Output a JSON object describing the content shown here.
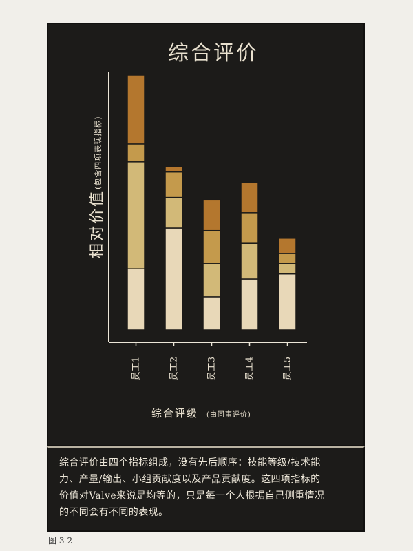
{
  "chart_data": {
    "type": "bar",
    "stacked": true,
    "title": "综合评价",
    "ylabel": "相对价值",
    "ylabel_note": "(包含四项表现指标)",
    "xlabel": "综合评级",
    "xlabel_note": "(由同事评价)",
    "categories": [
      "员工1",
      "员工2",
      "员工3",
      "员工4",
      "员工5"
    ],
    "ylim": [
      0,
      100
    ],
    "grid": false,
    "series": [
      {
        "values": [
          24,
          40,
          13,
          20,
          22
        ],
        "color": "#e8d8b8"
      },
      {
        "values": [
          42,
          12,
          13,
          14,
          4
        ],
        "color": "#d2b978"
      },
      {
        "values": [
          7,
          10,
          13,
          12,
          4
        ],
        "color": "#c49a4c"
      },
      {
        "values": [
          27,
          2,
          12,
          12,
          6
        ],
        "color": "#b4772e"
      }
    ]
  },
  "caption": {
    "lines": [
      "综合评价由四个指标组成，没有先后顺序：技能等级/技术能",
      "力、产量/输出、小组贡献度以及产品贡献度。这四项指标的",
      "价值对Valve来说是均等的，只是每一个人根据自己侧重情况",
      "的不同会有不同的表现。"
    ]
  },
  "figure_label": "图 3-2"
}
